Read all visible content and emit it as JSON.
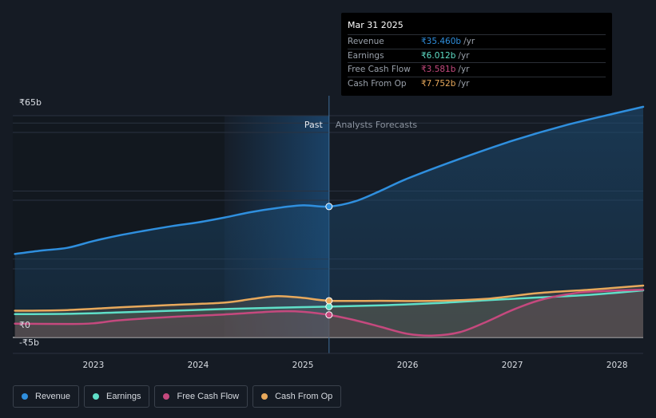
{
  "chart_data": {
    "type": "line",
    "y_tick_labels": [
      "₹65b",
      "₹0",
      "-₹5b"
    ],
    "y_tick_values": [
      65,
      0,
      -5
    ],
    "ylim": [
      -5,
      65
    ],
    "x_ticks": [
      2023,
      2024,
      2025,
      2026,
      2027,
      2028
    ],
    "xlim": [
      2022.23,
      2028.25
    ],
    "divider_x": 2025.25,
    "past_region_start": 2024.25,
    "past_label": "Past",
    "forecast_label": "Analysts Forecasts",
    "series": [
      {
        "name": "Revenue",
        "color": "#2f8fde",
        "x": [
          2022.25,
          2022.5,
          2022.75,
          2023.0,
          2023.25,
          2023.5,
          2023.75,
          2024.0,
          2024.25,
          2024.5,
          2024.75,
          2025.0,
          2025.25,
          2025.5,
          2025.75,
          2026.0,
          2026.5,
          2027.0,
          2027.5,
          2028.0,
          2028.25
        ],
        "y": [
          21.5,
          22.5,
          23.3,
          25.3,
          27.0,
          28.4,
          29.7,
          30.8,
          32.2,
          33.8,
          35.0,
          35.8,
          35.46,
          37.0,
          40.2,
          43.7,
          49.5,
          54.8,
          59.3,
          63.0,
          64.8
        ]
      },
      {
        "name": "Earnings",
        "color": "#5fdfc8",
        "x": [
          2022.25,
          2022.75,
          2023.25,
          2023.75,
          2024.25,
          2024.75,
          2025.25,
          2025.75,
          2026.25,
          2026.75,
          2027.25,
          2027.75,
          2028.25
        ],
        "y": [
          3.8,
          3.9,
          4.3,
          4.8,
          5.3,
          5.7,
          6.012,
          6.4,
          7.0,
          7.9,
          8.7,
          9.5,
          10.8
        ]
      },
      {
        "name": "Free Cash Flow",
        "color": "#c5497e",
        "x": [
          2022.25,
          2022.75,
          2023.0,
          2023.25,
          2023.75,
          2024.25,
          2024.75,
          2025.0,
          2025.25,
          2025.5,
          2025.75,
          2026.0,
          2026.25,
          2026.5,
          2026.75,
          2027.0,
          2027.25,
          2027.5,
          2027.75,
          2028.25
        ],
        "y": [
          1.0,
          0.9,
          1.1,
          2.0,
          3.0,
          3.7,
          4.6,
          4.5,
          3.581,
          2.0,
          0.0,
          -2.0,
          -2.5,
          -1.5,
          1.5,
          5.0,
          7.8,
          9.5,
          10.4,
          11.0
        ]
      },
      {
        "name": "Cash From Op",
        "color": "#e8a95c",
        "x": [
          2022.25,
          2022.75,
          2023.25,
          2023.75,
          2024.25,
          2024.5,
          2024.75,
          2025.0,
          2025.25,
          2025.75,
          2026.25,
          2026.75,
          2027.25,
          2027.75,
          2028.25
        ],
        "y": [
          4.8,
          5.0,
          5.8,
          6.5,
          7.2,
          8.2,
          9.1,
          8.6,
          7.752,
          7.7,
          7.7,
          8.3,
          10.0,
          11.0,
          12.2
        ]
      }
    ]
  },
  "tooltip": {
    "date": "Mar 31 2025",
    "rows": [
      {
        "label": "Revenue",
        "value": "₹35.460b",
        "unit": "/yr",
        "color": "#2f8fde"
      },
      {
        "label": "Earnings",
        "value": "₹6.012b",
        "unit": "/yr",
        "color": "#5fdfc8"
      },
      {
        "label": "Free Cash Flow",
        "value": "₹3.581b",
        "unit": "/yr",
        "color": "#c5497e"
      },
      {
        "label": "Cash From Op",
        "value": "₹7.752b",
        "unit": "/yr",
        "color": "#e8a95c"
      }
    ]
  },
  "legend": [
    {
      "label": "Revenue",
      "color": "#2f8fde"
    },
    {
      "label": "Earnings",
      "color": "#5fdfc8"
    },
    {
      "label": "Free Cash Flow",
      "color": "#c5497e"
    },
    {
      "label": "Cash From Op",
      "color": "#e8a95c"
    }
  ],
  "colors": {
    "background": "#151b24",
    "grid": "#2a3240",
    "zero_line": "#e6e6e6",
    "past_region": "#1c4e7c",
    "axis_text": "#d9dde3"
  }
}
